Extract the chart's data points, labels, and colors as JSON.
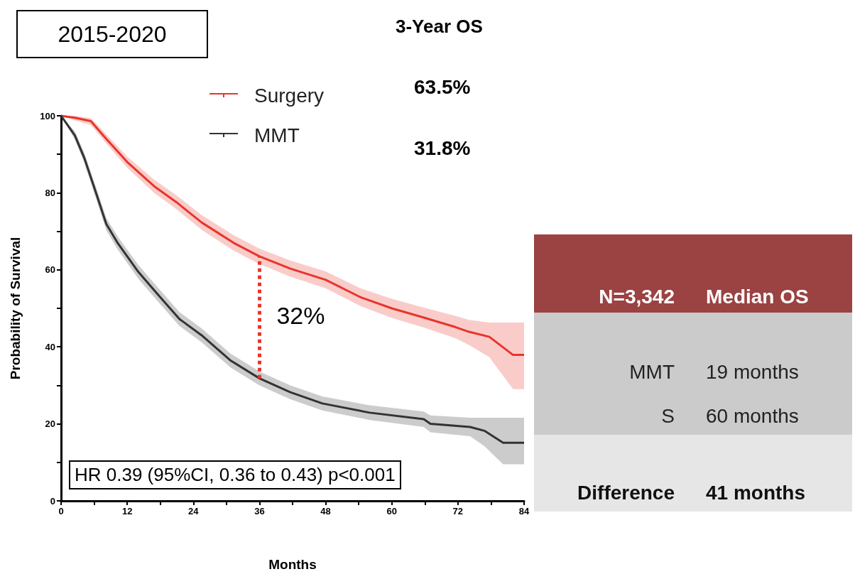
{
  "chart_data": [
    {
      "type": "line",
      "title": "2015-2020",
      "xlabel": "Months",
      "ylabel": "Probability of Survival",
      "xlim": [
        0,
        84
      ],
      "xticks": [
        0,
        {
          "value": 6,
          "label": null
        },
        12,
        {
          "value": 18,
          "label": null
        },
        24,
        {
          "value": 30,
          "label": null
        },
        36,
        {
          "value": 42,
          "label": null
        },
        48,
        {
          "value": 54,
          "label": null
        },
        60,
        {
          "value": 66,
          "label": null
        },
        72,
        {
          "value": 78,
          "label": null
        },
        84
      ],
      "ylim": [
        0,
        100
      ],
      "yticks": [
        0,
        {
          "value": 10,
          "label": null
        },
        20,
        {
          "value": 30,
          "label": null
        },
        40,
        {
          "value": 50,
          "label": null
        },
        60,
        {
          "value": 70,
          "label": null
        },
        80,
        {
          "value": 90,
          "label": null
        },
        100
      ],
      "legend": "top",
      "grid": false,
      "series": [
        {
          "name": "Surgery",
          "color": "#e8352a",
          "x": [
            0,
            2.5,
            5.4,
            8.2,
            12,
            16.9,
            20.9,
            25.5,
            31.3,
            36,
            41.6,
            48,
            54.3,
            60,
            65.8,
            71.6,
            74,
            77.7,
            82,
            84
          ],
          "values": [
            100,
            99.5,
            98.6,
            94,
            88,
            81.7,
            77.6,
            72.3,
            67,
            63.5,
            60.3,
            57.4,
            52.9,
            50,
            47.6,
            45.1,
            43.9,
            42.6,
            37.9,
            37.9
          ],
          "lower": [
            100,
            98.8,
            97.6,
            92.8,
            86.5,
            80,
            75.8,
            70.4,
            65,
            61.5,
            58.2,
            55.2,
            50.6,
            47.5,
            45,
            42.2,
            40.5,
            37.3,
            29,
            29
          ],
          "upper": [
            100,
            100,
            99.4,
            95.2,
            89.4,
            83.4,
            79.4,
            74.2,
            69,
            65.5,
            62.4,
            59.6,
            55.2,
            52.5,
            50.2,
            48,
            47,
            46.3,
            46.3,
            46.3
          ]
        },
        {
          "name": "MMT",
          "color": "#333333",
          "x": [
            0,
            2.5,
            4.2,
            6.5,
            8.2,
            10.3,
            14,
            17.5,
            21.5,
            25.5,
            30.7,
            36,
            41.6,
            47.4,
            56,
            65.8,
            67,
            74.2,
            76.8,
            80.2,
            84
          ],
          "values": [
            100,
            94.9,
            89.1,
            79.3,
            71.9,
            66.9,
            59.5,
            53.7,
            47.2,
            43,
            36.5,
            31.8,
            28.2,
            25.3,
            22.9,
            21.2,
            20,
            19.2,
            18.2,
            15.1,
            15.1
          ],
          "lower": [
            100,
            93.8,
            87.8,
            77.8,
            70.3,
            65.2,
            57.7,
            51.9,
            45.4,
            41.2,
            34.7,
            30,
            26.4,
            23.5,
            21,
            19.2,
            17.8,
            16.8,
            14.2,
            9.5,
            9.5
          ],
          "upper": [
            100,
            96,
            90.4,
            80.8,
            73.5,
            68.6,
            61.3,
            55.5,
            49,
            44.8,
            38.3,
            33.6,
            30,
            27.1,
            24.8,
            23.2,
            22.2,
            21.6,
            21.6,
            21.6,
            21.6
          ]
        }
      ],
      "ref_lines": [
        {
          "axis": "x",
          "value": 36,
          "color": "#e8352a",
          "line_style": "dotted"
        }
      ],
      "annotations": [
        "3-Year OS",
        "63.5%",
        "31.8%",
        "HR 0.39 (95%CI, 0.36 to 0.43) p<0.001",
        {
          "text": "32%",
          "x": 36,
          "y": 47.6
        }
      ]
    },
    {
      "type": "other",
      "annotations": [
        "N=3,342",
        "Median OS",
        "MMT",
        "19 months",
        "S",
        "60 months",
        "Difference",
        "41 months"
      ]
    }
  ]
}
